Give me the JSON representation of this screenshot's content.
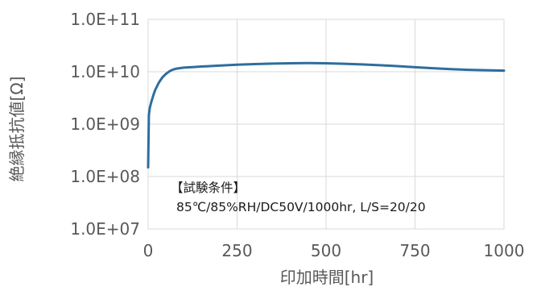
{
  "chart_data": {
    "type": "line",
    "xlabel": "印加時間[hr]",
    "ylabel": "絶縁抵抗値[Ω]",
    "xlim": [
      0,
      1000
    ],
    "ylim": [
      10000000,
      100000000000
    ],
    "yscale": "log",
    "grid": true,
    "x_ticks": [
      0,
      250,
      500,
      750,
      1000
    ],
    "y_ticks": [
      "1.0E+07",
      "1.0E+08",
      "1.0E+09",
      "1.0E+10",
      "1.0E+11"
    ],
    "y_tick_values": [
      10000000,
      100000000,
      1000000000,
      10000000000,
      100000000000
    ],
    "annotation": {
      "title": "【試験条件】",
      "conditions": "85℃/85%RH/DC50V/1000hr, L/S=20/20"
    },
    "series": [
      {
        "color": "#2e6e9e",
        "x": [
          0,
          2,
          5,
          10,
          15,
          20,
          30,
          40,
          50,
          60,
          70,
          80,
          100,
          125,
          150,
          200,
          250,
          300,
          350,
          400,
          450,
          500,
          550,
          600,
          650,
          700,
          750,
          800,
          850,
          900,
          950,
          1000
        ],
        "y": [
          150000000,
          1500000000,
          2100000000,
          2800000000,
          3600000000,
          4500000000,
          6200000000,
          7800000000,
          9100000000,
          10200000000,
          11000000000,
          11500000000,
          12000000000,
          12300000000,
          12600000000,
          13100000000,
          13600000000,
          14000000000,
          14300000000,
          14500000000,
          14600000000,
          14500000000,
          14200000000,
          13800000000,
          13300000000,
          12800000000,
          12200000000,
          11700000000,
          11200000000,
          10900000000,
          10700000000,
          10500000000
        ]
      }
    ]
  }
}
